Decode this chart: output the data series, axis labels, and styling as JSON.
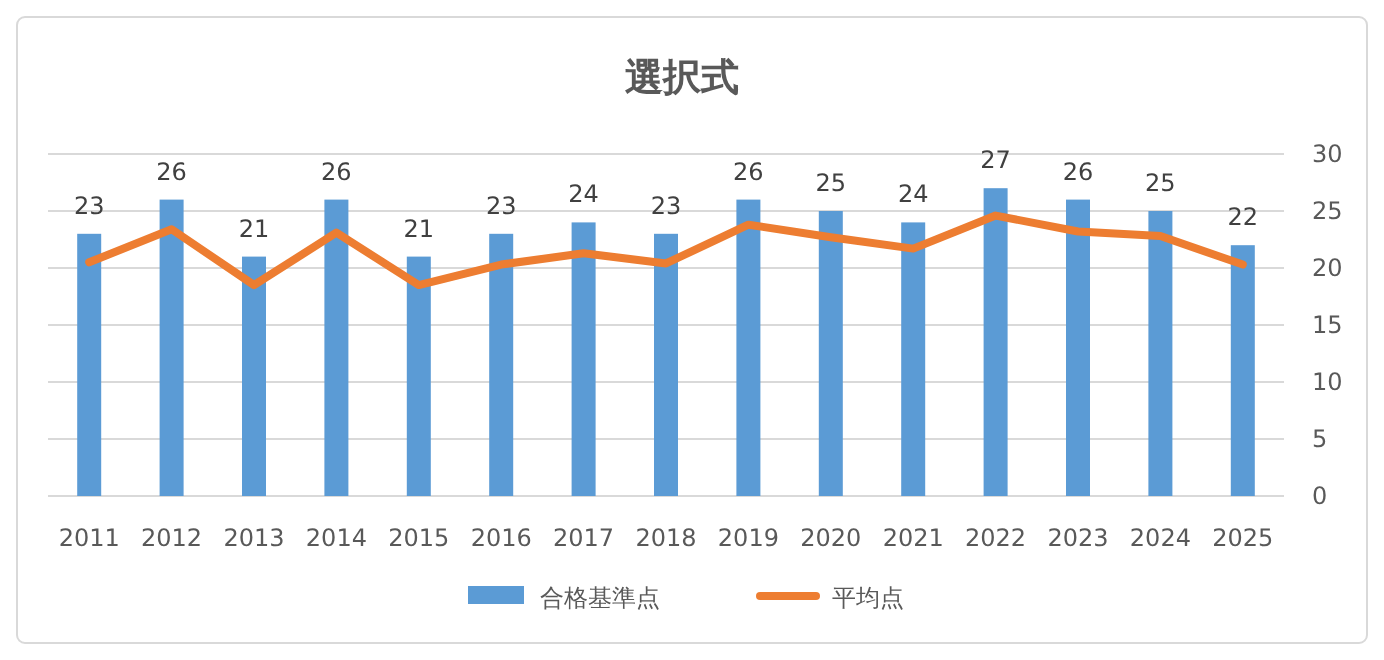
{
  "chart_data": {
    "type": "bar",
    "title": "選択式",
    "categories": [
      "2011",
      "2012",
      "2013",
      "2014",
      "2015",
      "2016",
      "2017",
      "2018",
      "2019",
      "2020",
      "2021",
      "2022",
      "2023",
      "2024",
      "2025"
    ],
    "series": [
      {
        "name": "合格基準点",
        "color": "#5b9bd5",
        "data_labels": true,
        "values": [
          23,
          26,
          21,
          26,
          21,
          23,
          24,
          23,
          26,
          25,
          24,
          27,
          26,
          25,
          22
        ]
      },
      {
        "name": "平均点",
        "type": "line",
        "color": "#ed7d31",
        "values": [
          20.5,
          23.4,
          18.5,
          23.1,
          18.5,
          20.3,
          21.3,
          20.4,
          23.8,
          22.7,
          21.7,
          24.6,
          23.2,
          22.8,
          20.3
        ]
      }
    ],
    "ylim": [
      0,
      30
    ],
    "yticks": [
      0,
      5,
      10,
      15,
      20,
      25,
      30
    ],
    "grid": "y",
    "legend": "bottom",
    "marker": "none",
    "line_style": "solid"
  }
}
